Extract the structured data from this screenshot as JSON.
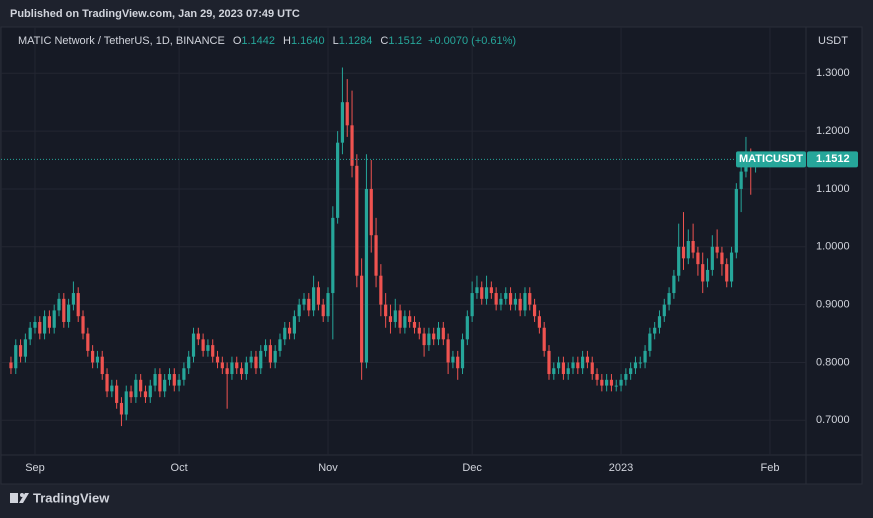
{
  "header": {
    "published": "Published on TradingView.com, Jan 29, 2023 07:49 UTC"
  },
  "footer": {
    "brand": "TradingView"
  },
  "chart_data": {
    "type": "candlestick",
    "title": "MATIC Network / TetherUS, 1D, BINANCE",
    "legend": {
      "o_label": "O",
      "o": "1.1442",
      "h_label": "H",
      "h": "1.1640",
      "l_label": "L",
      "l": "1.1284",
      "c_label": "C",
      "c": "1.1512",
      "change": "+0.0070 (+0.61%)"
    },
    "y_unit": "USDT",
    "price_tag": {
      "symbol": "MATICUSDT",
      "value": 1.1512,
      "label": "1.1512"
    },
    "up_color": "#26a69a",
    "down_color": "#ef5350",
    "grid": true,
    "ylim": [
      0.64,
      1.38
    ],
    "yticks": [
      {
        "value": 0.7,
        "label": "0.7000"
      },
      {
        "value": 0.8,
        "label": "0.8000"
      },
      {
        "value": 0.9,
        "label": "0.9000"
      },
      {
        "value": 1.0,
        "label": "1.0000"
      },
      {
        "value": 1.1,
        "label": "1.1000"
      },
      {
        "value": 1.2,
        "label": "1.2000"
      },
      {
        "value": 1.3,
        "label": "1.3000"
      }
    ],
    "xlim": [
      -0.2,
      165.5
    ],
    "xticks": [
      {
        "value": 5,
        "label": "Sep"
      },
      {
        "value": 35,
        "label": "Oct"
      },
      {
        "value": 66,
        "label": "Nov"
      },
      {
        "value": 96,
        "label": "Dec"
      },
      {
        "value": 127,
        "label": "2023"
      },
      {
        "value": 158,
        "label": "Feb"
      }
    ],
    "candles": [
      [
        0.8,
        0.81,
        0.78,
        0.79
      ],
      [
        0.79,
        0.84,
        0.78,
        0.83
      ],
      [
        0.83,
        0.84,
        0.8,
        0.81
      ],
      [
        0.81,
        0.85,
        0.8,
        0.84
      ],
      [
        0.84,
        0.87,
        0.83,
        0.86
      ],
      [
        0.86,
        0.88,
        0.85,
        0.87
      ],
      [
        0.87,
        0.88,
        0.84,
        0.85
      ],
      [
        0.85,
        0.89,
        0.84,
        0.88
      ],
      [
        0.88,
        0.89,
        0.85,
        0.86
      ],
      [
        0.86,
        0.9,
        0.85,
        0.89
      ],
      [
        0.89,
        0.92,
        0.88,
        0.91
      ],
      [
        0.91,
        0.92,
        0.86,
        0.87
      ],
      [
        0.87,
        0.91,
        0.86,
        0.9
      ],
      [
        0.9,
        0.94,
        0.89,
        0.92
      ],
      [
        0.92,
        0.93,
        0.87,
        0.88
      ],
      [
        0.88,
        0.89,
        0.84,
        0.85
      ],
      [
        0.85,
        0.86,
        0.81,
        0.82
      ],
      [
        0.82,
        0.83,
        0.79,
        0.8
      ],
      [
        0.8,
        0.82,
        0.79,
        0.81
      ],
      [
        0.81,
        0.82,
        0.77,
        0.78
      ],
      [
        0.78,
        0.79,
        0.74,
        0.75
      ],
      [
        0.75,
        0.77,
        0.74,
        0.76
      ],
      [
        0.76,
        0.77,
        0.72,
        0.73
      ],
      [
        0.73,
        0.74,
        0.69,
        0.71
      ],
      [
        0.71,
        0.76,
        0.7,
        0.75
      ],
      [
        0.75,
        0.76,
        0.73,
        0.74
      ],
      [
        0.74,
        0.78,
        0.73,
        0.77
      ],
      [
        0.77,
        0.78,
        0.74,
        0.75
      ],
      [
        0.75,
        0.76,
        0.73,
        0.74
      ],
      [
        0.74,
        0.77,
        0.73,
        0.76
      ],
      [
        0.76,
        0.79,
        0.75,
        0.78
      ],
      [
        0.78,
        0.79,
        0.74,
        0.75
      ],
      [
        0.75,
        0.78,
        0.74,
        0.77
      ],
      [
        0.77,
        0.79,
        0.76,
        0.78
      ],
      [
        0.78,
        0.79,
        0.75,
        0.76
      ],
      [
        0.76,
        0.78,
        0.75,
        0.77
      ],
      [
        0.77,
        0.8,
        0.76,
        0.79
      ],
      [
        0.79,
        0.82,
        0.78,
        0.81
      ],
      [
        0.81,
        0.86,
        0.8,
        0.85
      ],
      [
        0.85,
        0.86,
        0.83,
        0.84
      ],
      [
        0.84,
        0.85,
        0.81,
        0.82
      ],
      [
        0.82,
        0.84,
        0.81,
        0.83
      ],
      [
        0.83,
        0.84,
        0.8,
        0.81
      ],
      [
        0.81,
        0.82,
        0.79,
        0.8
      ],
      [
        0.8,
        0.81,
        0.78,
        0.79
      ],
      [
        0.79,
        0.8,
        0.72,
        0.78
      ],
      [
        0.78,
        0.81,
        0.77,
        0.8
      ],
      [
        0.8,
        0.81,
        0.78,
        0.79
      ],
      [
        0.79,
        0.8,
        0.77,
        0.78
      ],
      [
        0.78,
        0.81,
        0.77,
        0.8
      ],
      [
        0.8,
        0.82,
        0.79,
        0.81
      ],
      [
        0.81,
        0.82,
        0.78,
        0.79
      ],
      [
        0.79,
        0.83,
        0.78,
        0.82
      ],
      [
        0.82,
        0.84,
        0.81,
        0.83
      ],
      [
        0.83,
        0.84,
        0.79,
        0.8
      ],
      [
        0.8,
        0.83,
        0.79,
        0.82
      ],
      [
        0.82,
        0.85,
        0.81,
        0.84
      ],
      [
        0.84,
        0.87,
        0.83,
        0.86
      ],
      [
        0.86,
        0.87,
        0.84,
        0.85
      ],
      [
        0.85,
        0.89,
        0.84,
        0.88
      ],
      [
        0.88,
        0.91,
        0.87,
        0.9
      ],
      [
        0.9,
        0.92,
        0.89,
        0.91
      ],
      [
        0.91,
        0.92,
        0.88,
        0.89
      ],
      [
        0.89,
        0.95,
        0.88,
        0.93
      ],
      [
        0.93,
        0.94,
        0.89,
        0.9
      ],
      [
        0.9,
        0.91,
        0.87,
        0.88
      ],
      [
        0.88,
        0.93,
        0.87,
        0.92
      ],
      [
        0.92,
        1.07,
        0.84,
        1.05
      ],
      [
        1.05,
        1.2,
        1.04,
        1.18
      ],
      [
        1.18,
        1.31,
        1.16,
        1.25
      ],
      [
        1.25,
        1.29,
        1.19,
        1.21
      ],
      [
        1.21,
        1.27,
        1.12,
        1.14
      ],
      [
        1.14,
        1.16,
        0.93,
        0.95
      ],
      [
        0.95,
        0.98,
        0.77,
        0.8
      ],
      [
        0.8,
        1.16,
        0.79,
        1.1
      ],
      [
        1.1,
        1.15,
        0.99,
        1.02
      ],
      [
        1.02,
        1.05,
        0.93,
        0.95
      ],
      [
        0.95,
        0.97,
        0.88,
        0.9
      ],
      [
        0.9,
        0.92,
        0.86,
        0.88
      ],
      [
        0.88,
        0.9,
        0.85,
        0.87
      ],
      [
        0.87,
        0.91,
        0.86,
        0.89
      ],
      [
        0.89,
        0.9,
        0.85,
        0.86
      ],
      [
        0.86,
        0.89,
        0.85,
        0.88
      ],
      [
        0.88,
        0.89,
        0.86,
        0.87
      ],
      [
        0.87,
        0.88,
        0.85,
        0.86
      ],
      [
        0.86,
        0.87,
        0.84,
        0.85
      ],
      [
        0.85,
        0.86,
        0.81,
        0.83
      ],
      [
        0.83,
        0.86,
        0.82,
        0.85
      ],
      [
        0.85,
        0.86,
        0.83,
        0.84
      ],
      [
        0.84,
        0.87,
        0.83,
        0.86
      ],
      [
        0.86,
        0.87,
        0.83,
        0.84
      ],
      [
        0.84,
        0.85,
        0.78,
        0.8
      ],
      [
        0.8,
        0.82,
        0.79,
        0.81
      ],
      [
        0.81,
        0.82,
        0.77,
        0.79
      ],
      [
        0.79,
        0.85,
        0.78,
        0.84
      ],
      [
        0.84,
        0.89,
        0.83,
        0.88
      ],
      [
        0.88,
        0.94,
        0.87,
        0.92
      ],
      [
        0.92,
        0.95,
        0.91,
        0.93
      ],
      [
        0.93,
        0.94,
        0.9,
        0.91
      ],
      [
        0.91,
        0.95,
        0.9,
        0.93
      ],
      [
        0.93,
        0.94,
        0.91,
        0.92
      ],
      [
        0.92,
        0.93,
        0.89,
        0.9
      ],
      [
        0.9,
        0.92,
        0.89,
        0.91
      ],
      [
        0.91,
        0.93,
        0.9,
        0.92
      ],
      [
        0.92,
        0.93,
        0.89,
        0.9
      ],
      [
        0.9,
        0.92,
        0.89,
        0.91
      ],
      [
        0.91,
        0.92,
        0.88,
        0.89
      ],
      [
        0.89,
        0.93,
        0.88,
        0.92
      ],
      [
        0.92,
        0.93,
        0.89,
        0.9
      ],
      [
        0.9,
        0.91,
        0.87,
        0.88
      ],
      [
        0.88,
        0.89,
        0.85,
        0.86
      ],
      [
        0.86,
        0.87,
        0.81,
        0.82
      ],
      [
        0.82,
        0.83,
        0.77,
        0.78
      ],
      [
        0.78,
        0.8,
        0.77,
        0.79
      ],
      [
        0.79,
        0.81,
        0.78,
        0.8
      ],
      [
        0.8,
        0.81,
        0.77,
        0.78
      ],
      [
        0.78,
        0.8,
        0.77,
        0.79
      ],
      [
        0.79,
        0.81,
        0.78,
        0.8
      ],
      [
        0.8,
        0.81,
        0.78,
        0.79
      ],
      [
        0.79,
        0.82,
        0.78,
        0.81
      ],
      [
        0.81,
        0.82,
        0.79,
        0.8
      ],
      [
        0.8,
        0.81,
        0.77,
        0.78
      ],
      [
        0.78,
        0.79,
        0.76,
        0.77
      ],
      [
        0.77,
        0.78,
        0.75,
        0.76
      ],
      [
        0.76,
        0.78,
        0.75,
        0.77
      ],
      [
        0.77,
        0.78,
        0.75,
        0.76
      ],
      [
        0.76,
        0.77,
        0.75,
        0.76
      ],
      [
        0.76,
        0.78,
        0.75,
        0.77
      ],
      [
        0.77,
        0.79,
        0.76,
        0.78
      ],
      [
        0.78,
        0.8,
        0.77,
        0.79
      ],
      [
        0.79,
        0.81,
        0.78,
        0.8
      ],
      [
        0.8,
        0.81,
        0.79,
        0.8
      ],
      [
        0.8,
        0.83,
        0.79,
        0.82
      ],
      [
        0.82,
        0.86,
        0.81,
        0.85
      ],
      [
        0.85,
        0.87,
        0.84,
        0.86
      ],
      [
        0.86,
        0.89,
        0.85,
        0.88
      ],
      [
        0.88,
        0.91,
        0.87,
        0.9
      ],
      [
        0.9,
        0.93,
        0.89,
        0.92
      ],
      [
        0.92,
        0.96,
        0.91,
        0.95
      ],
      [
        0.95,
        1.04,
        0.94,
        1.0
      ],
      [
        1.0,
        1.06,
        0.96,
        0.98
      ],
      [
        0.98,
        1.03,
        0.97,
        1.01
      ],
      [
        1.01,
        1.04,
        0.98,
        0.99
      ],
      [
        0.99,
        1.0,
        0.95,
        0.97
      ],
      [
        0.97,
        0.99,
        0.92,
        0.94
      ],
      [
        0.94,
        0.98,
        0.93,
        0.96
      ],
      [
        0.96,
        1.02,
        0.95,
        1.0
      ],
      [
        1.0,
        1.03,
        0.98,
        0.99
      ],
      [
        0.99,
        1.0,
        0.95,
        0.97
      ],
      [
        0.97,
        0.98,
        0.93,
        0.94
      ],
      [
        0.94,
        1.0,
        0.93,
        0.99
      ],
      [
        0.99,
        1.11,
        0.98,
        1.1
      ],
      [
        1.1,
        1.15,
        1.06,
        1.13
      ],
      [
        1.13,
        1.19,
        1.12,
        1.16
      ],
      [
        1.16,
        1.17,
        1.09,
        1.1442
      ],
      [
        1.1442,
        1.164,
        1.1284,
        1.1512
      ]
    ]
  }
}
